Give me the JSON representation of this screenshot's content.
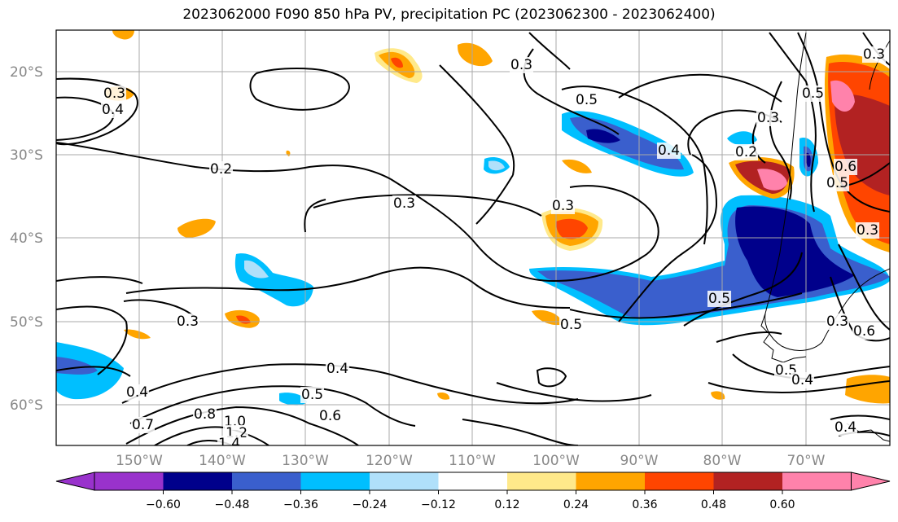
{
  "title": "2023062000 F090 850 hPa PV, precipitation PC (2023062300 - 2023062400)",
  "latitude_labels": [
    "20°S",
    "30°S",
    "40°S",
    "50°S",
    "60°S"
  ],
  "longitude_labels": [
    "150°W",
    "140°W",
    "130°W",
    "120°W",
    "110°W",
    "100°W",
    "90°W",
    "80°W",
    "70°W"
  ],
  "contour_labels": [
    "0.3",
    "0.4",
    "0.2",
    "0.3",
    "0.3",
    "0.3",
    "0.5",
    "0.4",
    "0.4",
    "0.7",
    "0.8",
    "1.0",
    "1.2",
    "1.4",
    "0.5",
    "0.6",
    "0.3",
    "0.5",
    "0.4",
    "0.5",
    "0.2",
    "0.3",
    "0.6",
    "0.5",
    "0.3",
    "0.5",
    "0.4",
    "0.3",
    "0.5",
    "0.6",
    "0.4",
    "0.3"
  ],
  "colorbar": {
    "ticks": [
      "−0.60",
      "−0.48",
      "−0.36",
      "−0.24",
      "−0.12",
      "0.12",
      "0.24",
      "0.36",
      "0.48",
      "0.60"
    ],
    "colors": [
      "#9932cc",
      "#00008b",
      "#3a5fcd",
      "#00bfff",
      "#b0e0fa",
      "#ffffff",
      "#ffe98a",
      "#ffa500",
      "#ff4500",
      "#b22222",
      "#ff82ab"
    ]
  },
  "shading_colors": {
    "deep_negative": "#00008b",
    "mid_negative": "#3a5fcd",
    "negative": "#00bfff",
    "weak_negative": "#b0e0fa",
    "weak_positive": "#ffe98a",
    "positive": "#ffa500",
    "mid_positive": "#ff4500",
    "strong_positive": "#b22222",
    "max_positive": "#ff82ab",
    "purple_min": "#9932cc"
  }
}
